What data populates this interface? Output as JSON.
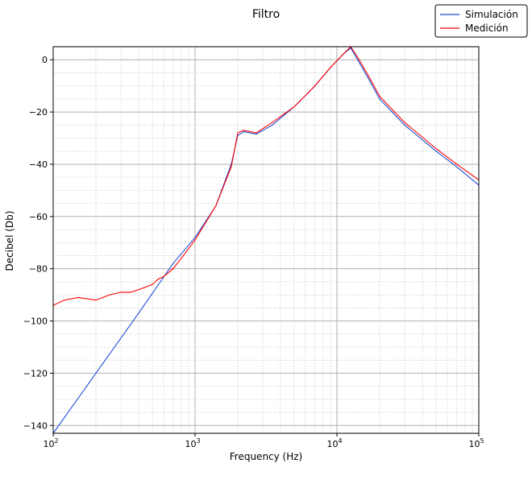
{
  "chart_data": {
    "type": "line",
    "title": "Filtro",
    "xlabel": "Frequency (Hz)",
    "ylabel": "Decibel (Db)",
    "xscale": "log",
    "xlim": [
      100,
      100000
    ],
    "ylim": [
      -143,
      5
    ],
    "x_tick_labels": [
      "10^2",
      "10^3",
      "10^4",
      "10^5"
    ],
    "x_ticks": [
      100,
      1000,
      10000,
      100000
    ],
    "y_ticks": [
      0,
      -20,
      -40,
      -60,
      -80,
      -100,
      -120,
      -140
    ],
    "y_tick_labels": [
      "0",
      "−20",
      "−40",
      "−60",
      "−80",
      "−100",
      "−120",
      "−140"
    ],
    "grid": true,
    "legend_position": "top-right",
    "series": [
      {
        "name": "Simulación",
        "color": "#1f4fd6",
        "x": [
          100,
          200,
          400,
          700,
          1000,
          1400,
          1800,
          2000,
          2200,
          2700,
          3500,
          5000,
          7000,
          9000,
          11000,
          12500,
          14000,
          17000,
          20000,
          30000,
          50000,
          70000,
          100000
        ],
        "y": [
          -143,
          -120,
          -97,
          -78,
          -68,
          -56,
          -40,
          -29,
          -27.5,
          -28.5,
          -25,
          -18,
          -10,
          -3,
          2,
          4.5,
          0,
          -8,
          -15,
          -25,
          -35,
          -41,
          -48
        ]
      },
      {
        "name": "Medición",
        "color": "#ff0000",
        "x": [
          100,
          120,
          150,
          200,
          250,
          300,
          350,
          400,
          450,
          500,
          550,
          600,
          700,
          800,
          1000,
          1400,
          1800,
          2000,
          2200,
          2700,
          3500,
          5000,
          7000,
          9000,
          11000,
          12500,
          14000,
          17000,
          20000,
          30000,
          50000,
          70000,
          100000
        ],
        "y": [
          -94,
          -92,
          -91,
          -92,
          -90,
          -89,
          -89,
          -88,
          -87,
          -86,
          -84,
          -83,
          -80,
          -76,
          -69,
          -56,
          -41,
          -28,
          -27,
          -28,
          -24,
          -18,
          -10,
          -3,
          2,
          5,
          1,
          -7,
          -14,
          -24,
          -34,
          -40,
          -46
        ]
      }
    ]
  }
}
